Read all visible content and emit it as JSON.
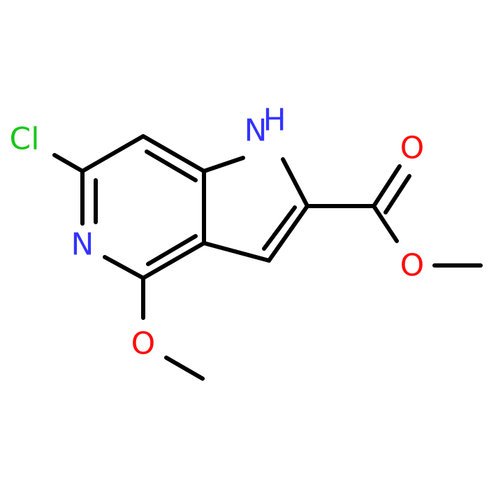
{
  "atoms": [
    {
      "label": "Cl"
    },
    {
      "label": "N"
    },
    {
      "label": "N"
    },
    {
      "label": "H"
    },
    {
      "label": "O"
    },
    {
      "label": "O"
    },
    {
      "label": "O"
    }
  ]
}
